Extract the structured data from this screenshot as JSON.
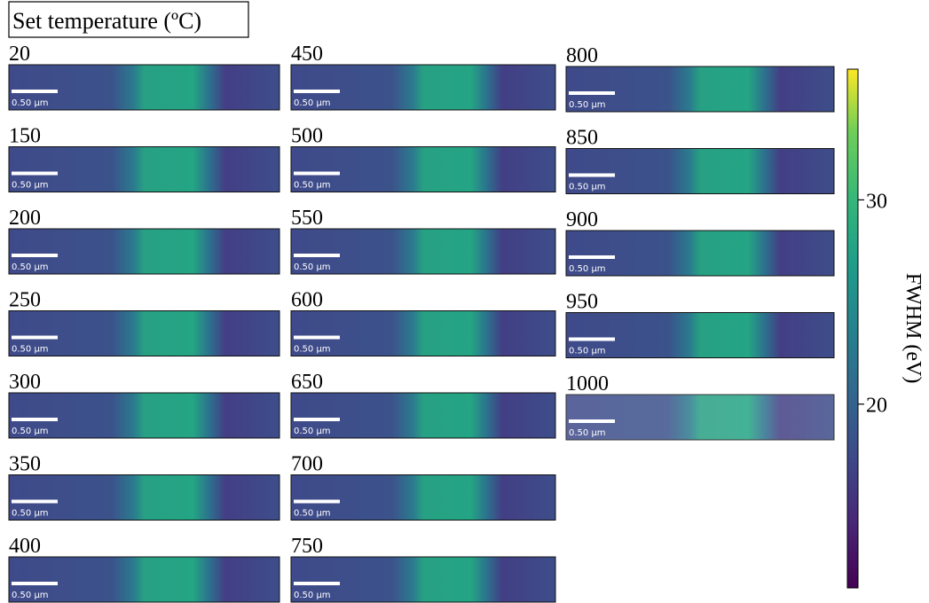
{
  "header": {
    "title": "Set temperature (ºC)"
  },
  "scale_bar": "0.50 µm",
  "columns": [
    {
      "panels": [
        "20",
        "150",
        "200",
        "250",
        "300",
        "350",
        "400"
      ]
    },
    {
      "panels": [
        "450",
        "500",
        "550",
        "600",
        "650",
        "700",
        "750"
      ]
    },
    {
      "panels": [
        "800",
        "850",
        "900",
        "950",
        "1000"
      ]
    }
  ],
  "colorbar": {
    "label": "FWHM (eV)",
    "lim": [
      11,
      36.4
    ],
    "ticks": [
      20,
      30
    ]
  }
}
